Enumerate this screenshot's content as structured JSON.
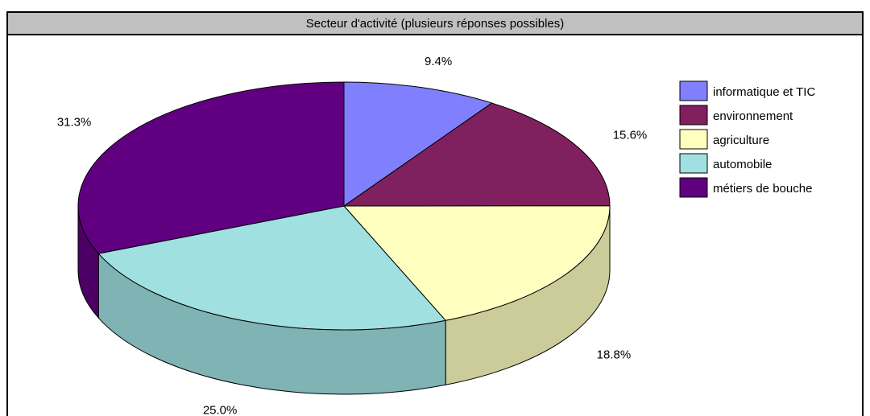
{
  "chart_data": {
    "type": "pie",
    "title": "Secteur d'activité (plusieurs réponses possibles)",
    "slices": [
      {
        "label": "informatique et TIC",
        "value": 9.4,
        "display": "9.4%",
        "color": "#8080ff",
        "side_color": "#6666cc"
      },
      {
        "label": "environnement",
        "value": 15.6,
        "display": "15.6%",
        "color": "#80205f",
        "side_color": "#661a4c"
      },
      {
        "label": "agriculture",
        "value": 18.8,
        "display": "18.8%",
        "color": "#ffffc0",
        "side_color": "#cccc9a"
      },
      {
        "label": "automobile",
        "value": 25.0,
        "display": "25.0%",
        "color": "#a0e0e0",
        "side_color": "#80b3b3"
      },
      {
        "label": "métiers de bouche",
        "value": 31.3,
        "display": "31.3%",
        "color": "#600080",
        "side_color": "#4c0066"
      }
    ],
    "legend_position": "right",
    "style": "3d"
  }
}
